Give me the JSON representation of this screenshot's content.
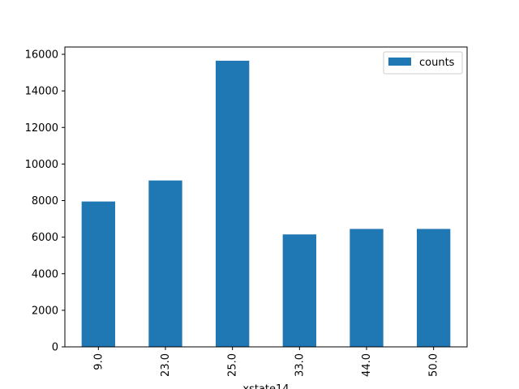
{
  "chart_data": {
    "type": "bar",
    "xlabel": "xstate14",
    "ylabel": "",
    "categories": [
      "9.0",
      "23.0",
      "25.0",
      "33.0",
      "44.0",
      "50.0"
    ],
    "series": [
      {
        "name": "counts",
        "values": [
          7950,
          9100,
          15650,
          6150,
          6450,
          6450
        ],
        "color": "#1f77b4"
      }
    ],
    "ylim": [
      0,
      16400
    ],
    "yticks": [
      0,
      2000,
      4000,
      6000,
      8000,
      10000,
      12000,
      14000,
      16000
    ],
    "grid": false,
    "legend_position": "top-right"
  }
}
